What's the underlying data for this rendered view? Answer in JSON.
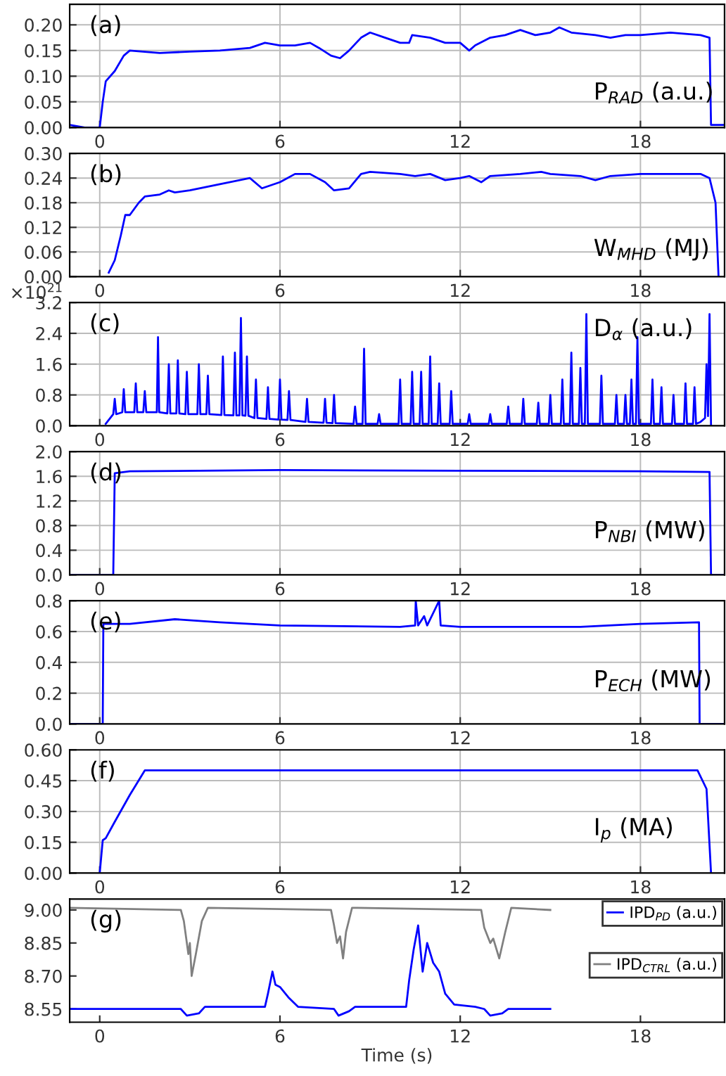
{
  "chart_data": [
    {
      "type": "line",
      "annotations": [
        "(a)",
        "P$_{RAD}$ (a.u.)"
      ],
      "xlim": [
        -1,
        20.8
      ],
      "xticks": [
        0,
        6,
        12,
        18
      ],
      "ylim": [
        0,
        0.24
      ],
      "yticks": [
        {
          "value": 0,
          "label": "0.00"
        },
        {
          "value": 0.05,
          "label": "0.05"
        },
        {
          "value": 0.1,
          "label": "0.10"
        },
        {
          "value": 0.15,
          "label": "0.15"
        },
        {
          "value": 0.2,
          "label": "0.20"
        }
      ],
      "grid": true,
      "series": [
        {
          "color": "#0000ff",
          "x": [
            -1,
            -0.5,
            0.0,
            0.1,
            0.2,
            0.5,
            0.8,
            1.0,
            2,
            3,
            4,
            5,
            5.5,
            6,
            6.5,
            7,
            7.3,
            7.7,
            8,
            8.3,
            8.7,
            9,
            9.5,
            10,
            10.3,
            10.4,
            11,
            11.5,
            12,
            12.3,
            12.5,
            13,
            13.5,
            14,
            14.5,
            15,
            15.3,
            15.7,
            16.5,
            17,
            17.5,
            18,
            19,
            20,
            20.3,
            20.35,
            20.8
          ],
          "values": [
            0.005,
            0.0,
            0.0,
            0.05,
            0.09,
            0.11,
            0.14,
            0.15,
            0.145,
            0.148,
            0.15,
            0.155,
            0.165,
            0.16,
            0.16,
            0.165,
            0.155,
            0.14,
            0.135,
            0.15,
            0.175,
            0.185,
            0.175,
            0.165,
            0.165,
            0.18,
            0.175,
            0.165,
            0.165,
            0.15,
            0.16,
            0.175,
            0.18,
            0.19,
            0.18,
            0.185,
            0.195,
            0.185,
            0.18,
            0.175,
            0.18,
            0.18,
            0.185,
            0.18,
            0.175,
            0.005,
            0.005
          ]
        }
      ]
    },
    {
      "type": "line",
      "annotations": [
        "(b)",
        "W$_{MHD}$ (MJ)"
      ],
      "xlim": [
        -1,
        20.8
      ],
      "xticks": [
        0,
        6,
        12,
        18
      ],
      "ylim": [
        0,
        0.3
      ],
      "yticks": [
        {
          "value": 0,
          "label": "0.00"
        },
        {
          "value": 0.06,
          "label": "0.06"
        },
        {
          "value": 0.12,
          "label": "0.12"
        },
        {
          "value": 0.18,
          "label": "0.18"
        },
        {
          "value": 0.24,
          "label": "0.24"
        },
        {
          "value": 0.3,
          "label": "0.30"
        }
      ],
      "grid": true,
      "series": [
        {
          "color": "#0000ff",
          "x": [
            0.3,
            0.5,
            0.7,
            0.85,
            1.0,
            1.3,
            1.5,
            2,
            2.3,
            2.5,
            3,
            4,
            5,
            5.4,
            6,
            6.5,
            7,
            7.5,
            7.8,
            8.3,
            8.7,
            9,
            10,
            10.5,
            11,
            11.5,
            12,
            12.3,
            12.7,
            13,
            14,
            14.7,
            15,
            16,
            16.5,
            17,
            18,
            19,
            20,
            20.3,
            20.5,
            20.6
          ],
          "values": [
            0.01,
            0.04,
            0.1,
            0.15,
            0.15,
            0.18,
            0.195,
            0.2,
            0.21,
            0.205,
            0.21,
            0.225,
            0.24,
            0.215,
            0.23,
            0.25,
            0.25,
            0.23,
            0.21,
            0.215,
            0.25,
            0.255,
            0.25,
            0.245,
            0.25,
            0.235,
            0.24,
            0.245,
            0.23,
            0.245,
            0.25,
            0.255,
            0.25,
            0.245,
            0.235,
            0.245,
            0.25,
            0.25,
            0.25,
            0.24,
            0.18,
            0.0
          ]
        }
      ]
    },
    {
      "type": "line",
      "annotations": [
        "(c)",
        "D$_{α}$ (a.u.)",
        "×10$^{21}$"
      ],
      "xlim": [
        -1,
        20.8
      ],
      "xticks": [
        0,
        6,
        12,
        18
      ],
      "ylim": [
        0,
        3.2
      ],
      "yticks": [
        {
          "value": 0,
          "label": "0.0"
        },
        {
          "value": 0.8,
          "label": "0.8"
        },
        {
          "value": 1.6,
          "label": "1.6"
        },
        {
          "value": 2.4,
          "label": "2.4"
        },
        {
          "value": 3.2,
          "label": "3.2"
        }
      ],
      "grid": true,
      "series": [
        {
          "color": "#0000ff",
          "x": [
            0.2,
            0.45,
            0.5,
            0.55,
            0.75,
            0.8,
            0.85,
            1.15,
            1.2,
            1.25,
            1.45,
            1.5,
            1.55,
            1.9,
            1.94,
            1.98,
            2.25,
            2.3,
            2.35,
            2.55,
            2.6,
            2.65,
            2.85,
            2.9,
            2.95,
            3.25,
            3.3,
            3.35,
            3.55,
            3.6,
            3.65,
            4.05,
            4.1,
            4.15,
            4.45,
            4.5,
            4.55,
            4.65,
            4.7,
            4.75,
            4.85,
            4.9,
            4.95,
            5.15,
            5.2,
            5.25,
            5.55,
            5.6,
            5.65,
            5.95,
            6.0,
            6.05,
            6.25,
            6.3,
            6.35,
            6.85,
            6.9,
            6.95,
            7.45,
            7.5,
            7.55,
            7.75,
            7.8,
            7.85,
            8.45,
            8.5,
            8.55,
            8.75,
            8.8,
            8.85,
            9.25,
            9.3,
            9.35,
            9.95,
            10.0,
            10.05,
            10.35,
            10.4,
            10.45,
            10.65,
            10.7,
            10.75,
            10.95,
            11.0,
            11.05,
            11.25,
            11.3,
            11.35,
            11.65,
            11.7,
            11.75,
            12.25,
            12.3,
            12.35,
            12.95,
            13.0,
            13.05,
            13.55,
            13.6,
            13.65,
            14.05,
            14.1,
            14.15,
            14.55,
            14.6,
            14.65,
            14.95,
            15.0,
            15.05,
            15.35,
            15.4,
            15.45,
            15.65,
            15.7,
            15.75,
            15.95,
            16.0,
            16.05,
            16.15,
            16.2,
            16.25,
            16.65,
            16.7,
            16.75,
            17.15,
            17.2,
            17.25,
            17.45,
            17.5,
            17.55,
            17.65,
            17.7,
            17.75,
            17.85,
            17.9,
            17.95,
            18.35,
            18.4,
            18.45,
            18.65,
            18.7,
            18.75,
            19.05,
            19.1,
            19.15,
            19.45,
            19.5,
            19.55,
            19.75,
            19.8,
            19.85,
            20.0,
            20.15,
            20.2,
            20.25,
            20.3,
            20.35
          ],
          "values": [
            0.05,
            0.3,
            0.7,
            0.3,
            0.35,
            0.95,
            0.35,
            0.35,
            1.1,
            0.35,
            0.35,
            0.9,
            0.35,
            0.35,
            2.3,
            0.35,
            0.32,
            1.6,
            0.32,
            0.32,
            1.7,
            0.32,
            0.3,
            1.4,
            0.3,
            0.3,
            1.6,
            0.3,
            0.3,
            1.3,
            0.3,
            0.28,
            1.8,
            0.28,
            0.27,
            1.9,
            0.27,
            0.27,
            2.8,
            0.27,
            0.26,
            1.8,
            0.26,
            0.2,
            1.2,
            0.2,
            0.18,
            1.0,
            0.18,
            0.16,
            1.2,
            0.16,
            0.15,
            0.9,
            0.15,
            0.1,
            0.7,
            0.1,
            0.08,
            0.7,
            0.08,
            0.07,
            0.8,
            0.07,
            0.05,
            0.5,
            0.05,
            0.05,
            2.0,
            0.05,
            0.05,
            0.3,
            0.05,
            0.05,
            1.2,
            0.05,
            0.05,
            1.4,
            0.05,
            0.05,
            1.4,
            0.05,
            0.05,
            1.8,
            0.05,
            0.05,
            1.1,
            0.05,
            0.05,
            0.9,
            0.05,
            0.05,
            0.3,
            0.05,
            0.05,
            0.3,
            0.05,
            0.05,
            0.5,
            0.05,
            0.05,
            0.7,
            0.05,
            0.05,
            0.6,
            0.05,
            0.05,
            0.8,
            0.05,
            0.05,
            1.2,
            0.05,
            0.05,
            1.9,
            0.05,
            0.05,
            1.5,
            0.05,
            0.05,
            2.9,
            0.05,
            0.05,
            1.3,
            0.05,
            0.05,
            0.8,
            0.05,
            0.05,
            0.8,
            0.05,
            0.05,
            1.2,
            0.05,
            0.05,
            2.3,
            0.05,
            0.05,
            1.2,
            0.05,
            0.05,
            1.0,
            0.05,
            0.05,
            0.8,
            0.05,
            0.05,
            1.1,
            0.05,
            0.05,
            1.0,
            0.05,
            0.1,
            0.2,
            1.6,
            0.25,
            2.9,
            0.0
          ]
        }
      ]
    },
    {
      "type": "line",
      "annotations": [
        "(d)",
        "P$_{NBI}$ (MW)"
      ],
      "xlim": [
        -1,
        20.8
      ],
      "xticks": [
        0,
        6,
        12,
        18
      ],
      "ylim": [
        0,
        2.0
      ],
      "yticks": [
        {
          "value": 0,
          "label": "0.0"
        },
        {
          "value": 0.4,
          "label": "0.4"
        },
        {
          "value": 0.8,
          "label": "0.8"
        },
        {
          "value": 1.2,
          "label": "1.2"
        },
        {
          "value": 1.6,
          "label": "1.6"
        },
        {
          "value": 2.0,
          "label": "2.0"
        }
      ],
      "grid": true,
      "series": [
        {
          "color": "#0000ff",
          "x": [
            -1,
            0.45,
            0.5,
            1,
            6,
            12,
            18,
            20.3,
            20.35,
            20.8
          ],
          "values": [
            0,
            0,
            1.65,
            1.68,
            1.7,
            1.69,
            1.68,
            1.67,
            0,
            0
          ]
        }
      ]
    },
    {
      "type": "line",
      "annotations": [
        "(e)",
        "P$_{ECH}$ (MW)"
      ],
      "xlim": [
        -1,
        20.8
      ],
      "xticks": [
        0,
        6,
        12,
        18
      ],
      "ylim": [
        0,
        0.8
      ],
      "yticks": [
        {
          "value": 0,
          "label": "0.0"
        },
        {
          "value": 0.2,
          "label": "0.2"
        },
        {
          "value": 0.4,
          "label": "0.4"
        },
        {
          "value": 0.6,
          "label": "0.6"
        },
        {
          "value": 0.8,
          "label": "0.8"
        }
      ],
      "grid": true,
      "series": [
        {
          "color": "#0000ff",
          "x": [
            -1,
            0.1,
            0.12,
            1,
            2.5,
            4,
            6,
            10,
            10.5,
            10.52,
            10.6,
            10.8,
            10.9,
            11.3,
            11.35,
            12,
            16,
            18,
            19.95,
            19.97,
            20.8
          ],
          "values": [
            0,
            0,
            0.65,
            0.65,
            0.68,
            0.66,
            0.64,
            0.63,
            0.64,
            0.8,
            0.64,
            0.7,
            0.64,
            0.8,
            0.64,
            0.63,
            0.63,
            0.65,
            0.66,
            0,
            0
          ]
        }
      ]
    },
    {
      "type": "line",
      "annotations": [
        "(f)",
        "I$_{p}$ (MA)"
      ],
      "xlim": [
        -1,
        20.8
      ],
      "xticks": [
        0,
        6,
        12,
        18
      ],
      "ylim": [
        0,
        0.6
      ],
      "yticks": [
        {
          "value": 0,
          "label": "0.00"
        },
        {
          "value": 0.15,
          "label": "0.15"
        },
        {
          "value": 0.3,
          "label": "0.30"
        },
        {
          "value": 0.45,
          "label": "0.45"
        },
        {
          "value": 0.6,
          "label": "0.60"
        }
      ],
      "grid": true,
      "series": [
        {
          "color": "#0000ff",
          "x": [
            0.0,
            0.1,
            0.2,
            0.5,
            1,
            1.5,
            6,
            12,
            18,
            19.9,
            20.2,
            20.35
          ],
          "values": [
            0.0,
            0.16,
            0.17,
            0.25,
            0.38,
            0.5,
            0.5,
            0.5,
            0.5,
            0.5,
            0.41,
            0.0
          ]
        }
      ]
    },
    {
      "type": "line",
      "annotations": [
        "(g)"
      ],
      "xlabel": "Time (s)",
      "xlim": [
        -1,
        20.8
      ],
      "xticks": [
        0,
        6,
        12,
        18
      ],
      "ylim": [
        8.49,
        9.05
      ],
      "yticks": [
        {
          "value": 8.55,
          "label": "8.55"
        },
        {
          "value": 8.7,
          "label": "8.70"
        },
        {
          "value": 8.85,
          "label": "8.85"
        },
        {
          "value": 9.0,
          "label": "9.00"
        }
      ],
      "grid": false,
      "legend": "right",
      "series": [
        {
          "name": "IPD$_{PD}$ (a.u.)",
          "color": "#0000ff",
          "x": [
            -1,
            2.7,
            2.9,
            3.3,
            3.5,
            5.5,
            5.6,
            5.75,
            5.85,
            6.0,
            6.3,
            6.6,
            7.8,
            7.95,
            8.3,
            8.5,
            10.2,
            10.3,
            10.45,
            10.6,
            10.75,
            10.9,
            11.1,
            11.3,
            11.5,
            11.8,
            12.5,
            12.8,
            13.0,
            13.4,
            13.6,
            15
          ],
          "values": [
            8.55,
            8.55,
            8.52,
            8.53,
            8.56,
            8.56,
            8.62,
            8.72,
            8.66,
            8.65,
            8.6,
            8.56,
            8.55,
            8.52,
            8.54,
            8.56,
            8.56,
            8.68,
            8.82,
            8.93,
            8.72,
            8.85,
            8.76,
            8.72,
            8.62,
            8.57,
            8.56,
            8.55,
            8.52,
            8.53,
            8.55,
            8.55
          ]
        },
        {
          "name": "IPD$_{CTRL}$ (a.u.)",
          "color": "#808080",
          "x": [
            -1,
            2.7,
            2.8,
            2.95,
            3.0,
            3.06,
            3.2,
            3.4,
            3.6,
            7.7,
            7.8,
            7.9,
            8.0,
            8.1,
            8.2,
            8.4,
            12.7,
            12.8,
            13.0,
            13.1,
            13.3,
            13.5,
            13.7,
            15
          ],
          "values": [
            9.01,
            9.0,
            8.95,
            8.8,
            8.85,
            8.7,
            8.8,
            8.95,
            9.01,
            9.0,
            8.93,
            8.85,
            8.88,
            8.78,
            8.9,
            9.01,
            9.0,
            8.92,
            8.85,
            8.87,
            8.78,
            8.9,
            9.01,
            9.0
          ]
        }
      ]
    }
  ]
}
